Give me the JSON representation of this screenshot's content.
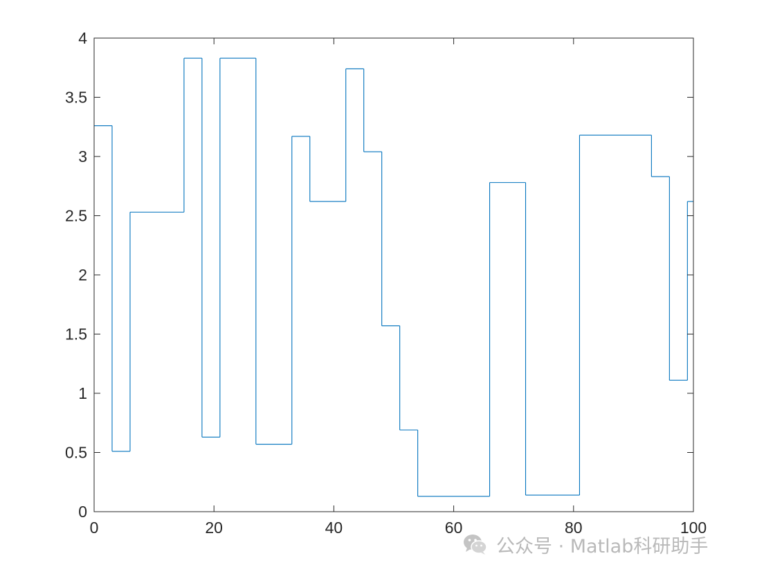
{
  "chart_data": {
    "type": "line",
    "line_style": "stairs",
    "title": "",
    "xlabel": "",
    "ylabel": "",
    "xlim": [
      0,
      100
    ],
    "ylim": [
      0,
      4
    ],
    "xticks": [
      0,
      20,
      40,
      60,
      80,
      100
    ],
    "yticks": [
      0,
      0.5,
      1,
      1.5,
      2,
      2.5,
      3,
      3.5,
      4
    ],
    "xtick_labels": [
      "0",
      "20",
      "40",
      "60",
      "80",
      "100"
    ],
    "ytick_labels": [
      "0",
      "0.5",
      "1",
      "1.5",
      "2",
      "2.5",
      "3",
      "3.5",
      "4"
    ],
    "grid": false,
    "legend": "none",
    "series": [
      {
        "color": "#0072bd",
        "steps": [
          {
            "x_start": 0,
            "x_end": 3,
            "y": 3.26
          },
          {
            "x_start": 3,
            "x_end": 6,
            "y": 0.51
          },
          {
            "x_start": 6,
            "x_end": 15,
            "y": 2.53
          },
          {
            "x_start": 15,
            "x_end": 18,
            "y": 3.83
          },
          {
            "x_start": 18,
            "x_end": 21,
            "y": 0.63
          },
          {
            "x_start": 21,
            "x_end": 27,
            "y": 3.83
          },
          {
            "x_start": 27,
            "x_end": 33,
            "y": 0.57
          },
          {
            "x_start": 33,
            "x_end": 36,
            "y": 3.17
          },
          {
            "x_start": 36,
            "x_end": 42,
            "y": 2.62
          },
          {
            "x_start": 42,
            "x_end": 45,
            "y": 3.74
          },
          {
            "x_start": 45,
            "x_end": 48,
            "y": 3.04
          },
          {
            "x_start": 48,
            "x_end": 51,
            "y": 1.57
          },
          {
            "x_start": 51,
            "x_end": 54,
            "y": 0.69
          },
          {
            "x_start": 54,
            "x_end": 66,
            "y": 0.13
          },
          {
            "x_start": 66,
            "x_end": 72,
            "y": 2.78
          },
          {
            "x_start": 72,
            "x_end": 81,
            "y": 0.14
          },
          {
            "x_start": 81,
            "x_end": 93,
            "y": 3.18
          },
          {
            "x_start": 93,
            "x_end": 96,
            "y": 2.83
          },
          {
            "x_start": 96,
            "x_end": 99,
            "y": 1.11
          },
          {
            "x_start": 99,
            "x_end": 100,
            "y": 2.62
          }
        ]
      }
    ]
  },
  "watermark": {
    "icon": "wechat-icon",
    "text": "公众号 · Matlab科研助手"
  }
}
